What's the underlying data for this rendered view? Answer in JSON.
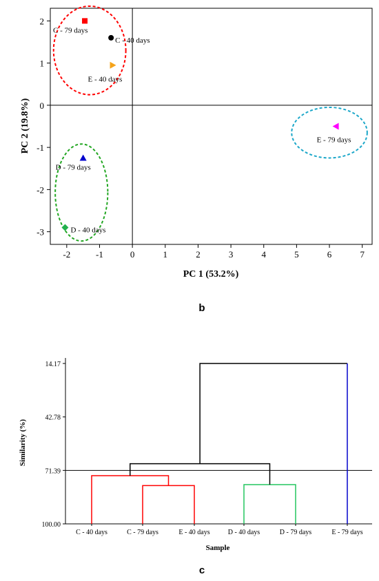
{
  "panel_b_label": "b",
  "panel_c_label": "c",
  "chart_data": [
    {
      "type": "scatter",
      "xlabel": "PC 1 (53.2%)",
      "ylabel": "PC 2 (19.8%)",
      "xlim": [
        -2.5,
        7.3
      ],
      "ylim": [
        -3.3,
        2.3
      ],
      "xticks": [
        -2,
        -1,
        0,
        1,
        2,
        3,
        4,
        5,
        6,
        7
      ],
      "yticks": [
        2,
        1,
        0,
        -1,
        -2,
        -3
      ],
      "points": [
        {
          "label": "C - 79 days",
          "x": -1.45,
          "y": 2.0,
          "marker": "square",
          "color": "#ff0000"
        },
        {
          "label": "C - 40 days",
          "x": -0.65,
          "y": 1.6,
          "marker": "circle",
          "color": "#000000"
        },
        {
          "label": "E - 40 days",
          "x": -0.6,
          "y": 0.95,
          "marker": "triangle-right",
          "color": "#f5a31a"
        },
        {
          "label": "E - 79 days",
          "x": 6.2,
          "y": -0.5,
          "marker": "triangle-left",
          "color": "#ff00ff"
        },
        {
          "label": "D - 79 days",
          "x": -1.5,
          "y": -1.25,
          "marker": "triangle-up",
          "color": "#0000cc"
        },
        {
          "label": "D - 40 days",
          "x": -2.05,
          "y": -2.9,
          "marker": "diamond",
          "color": "#22b14c"
        }
      ],
      "clusters": [
        {
          "color": "#ff0000",
          "cx": -1.3,
          "cy": 1.3,
          "rx": 1.1,
          "ry": 1.05
        },
        {
          "color": "#1ba7c9",
          "cx": 6.0,
          "cy": -0.65,
          "rx": 1.15,
          "ry": 0.6
        },
        {
          "color": "#22a622",
          "cx": -1.55,
          "cy": -2.07,
          "rx": 0.8,
          "ry": 1.15
        }
      ],
      "grid": false
    },
    {
      "type": "dendrogram",
      "xlabel": "Sample",
      "ylabel": "Similarity (%)",
      "ylim": [
        100.0,
        14.17
      ],
      "yticks": [
        "14.17",
        "42.78",
        "71.39",
        "100.00"
      ],
      "categories": [
        "C - 40 days",
        "C - 79 days",
        "E - 40 days",
        "D - 40 days",
        "D - 79 days",
        "E - 79 days"
      ],
      "cut_line": 71.39,
      "merges": [
        {
          "left": "C - 79 days",
          "right": "E - 40 days",
          "similarity": 79.5,
          "color": "#ff0000"
        },
        {
          "left": "C - 40 days",
          "right": "C-79/E-40",
          "similarity": 74.2,
          "color": "#ff0000"
        },
        {
          "left": "D - 40 days",
          "right": "D - 79 days",
          "similarity": 79.0,
          "color": "#22c55e"
        },
        {
          "left": "C cluster",
          "right": "D cluster",
          "similarity": 67.8,
          "color": "#000000"
        },
        {
          "left": "C/D cluster",
          "right": "E - 79 days",
          "similarity": 14.17,
          "color": "#000000"
        }
      ],
      "leaf_colors": {
        "C - 40 days": "#ff0000",
        "C - 79 days": "#ff0000",
        "E - 40 days": "#ff0000",
        "D - 40 days": "#22c55e",
        "D - 79 days": "#22c55e",
        "E - 79 days": "#0000cc"
      }
    }
  ]
}
